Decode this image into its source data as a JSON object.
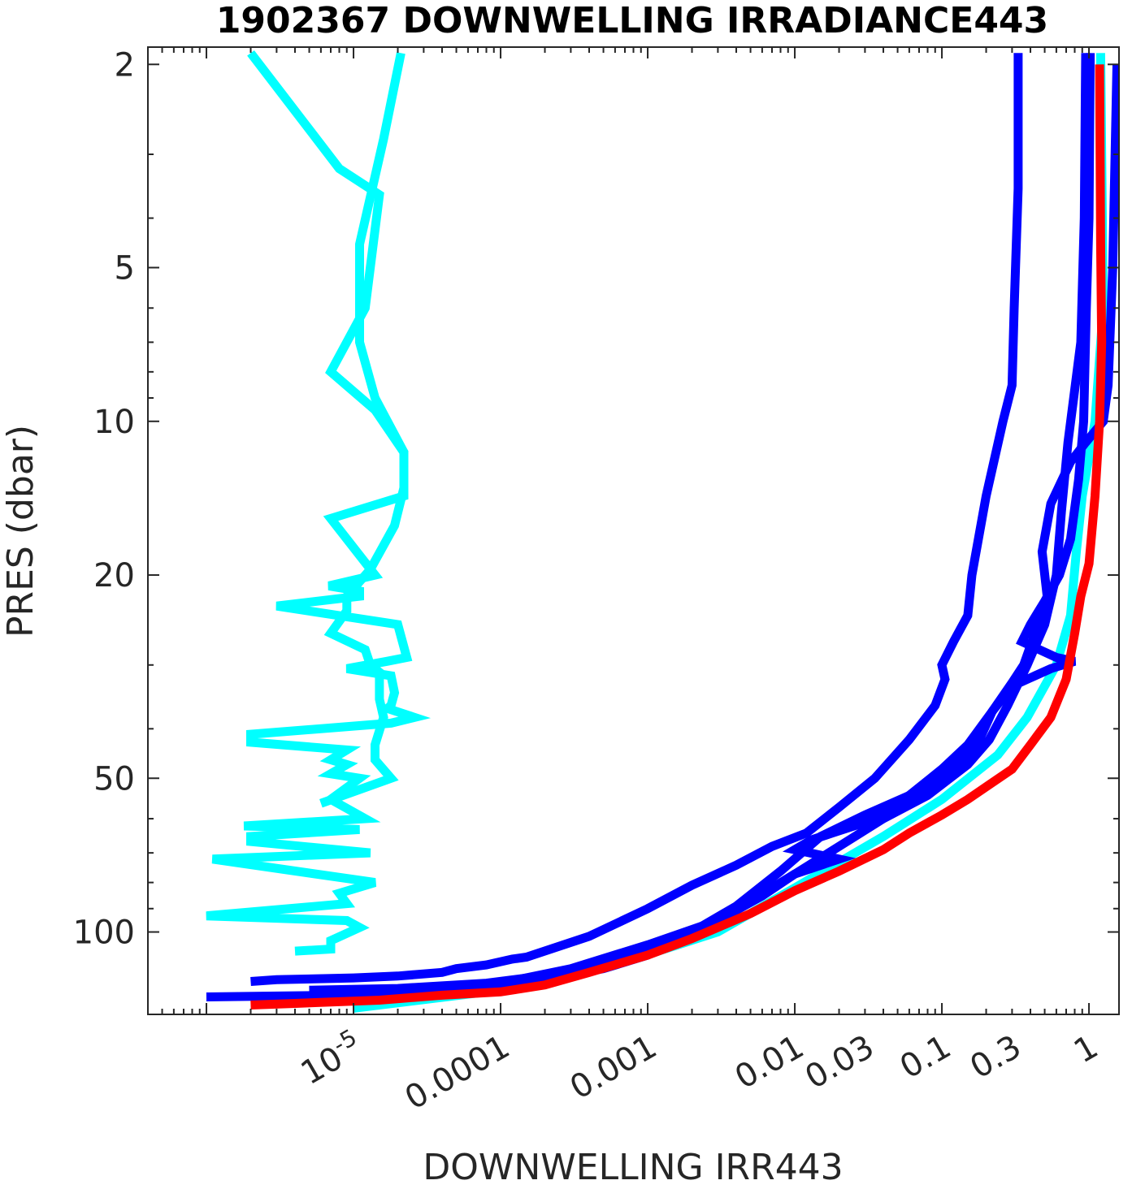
{
  "chart_data": {
    "type": "line",
    "title": "1902367  DOWNWELLING IRRADIANCE443",
    "xlabel": "DOWNWELLING IRR443",
    "ylabel": "PRES (dbar)",
    "x_scale": "log",
    "y_scale": "log",
    "y_reversed": true,
    "xlim": [
      4e-07,
      1.6
    ],
    "ylim": [
      1.85,
      145
    ],
    "x_ticks": [
      {
        "value": 1e-05,
        "label": "10",
        "exp": "-5"
      },
      {
        "value": 0.0001,
        "label": "0.0001"
      },
      {
        "value": 0.001,
        "label": "0.001"
      },
      {
        "value": 0.01,
        "label": "0.01"
      },
      {
        "value": 0.03,
        "label": "0.03"
      },
      {
        "value": 0.1,
        "label": "0.1"
      },
      {
        "value": 0.3,
        "label": "0.3"
      },
      {
        "value": 1,
        "label": "1"
      }
    ],
    "y_ticks": [
      {
        "value": 2,
        "label": "2"
      },
      {
        "value": 5,
        "label": "5"
      },
      {
        "value": 10,
        "label": "10"
      },
      {
        "value": 20,
        "label": "20"
      },
      {
        "value": 50,
        "label": "50"
      },
      {
        "value": 100,
        "label": "100"
      }
    ],
    "grid": false,
    "legend": "none",
    "series": [
      {
        "color": "#00ffff",
        "points": [
          [
            2e-06,
            1.9
          ],
          [
            8e-06,
            3.2
          ],
          [
            1.5e-05,
            3.6
          ],
          [
            1.2e-05,
            6.0
          ],
          [
            7e-06,
            8.0
          ],
          [
            1.4e-05,
            9.5
          ],
          [
            2.2e-05,
            11.5
          ],
          [
            2.2e-05,
            14.0
          ],
          [
            7e-06,
            15.5
          ],
          [
            1.4e-05,
            20.0
          ],
          [
            6.8e-06,
            21.0
          ],
          [
            1.1e-05,
            21.5
          ],
          [
            1.1e-05,
            22.0
          ],
          [
            3e-06,
            23.0
          ],
          [
            2e-05,
            25.0
          ],
          [
            2.3e-05,
            29.0
          ],
          [
            1.7e-05,
            29.5
          ],
          [
            9e-06,
            30.5
          ],
          [
            1.8e-05,
            31.5
          ],
          [
            1.9e-05,
            34.0
          ],
          [
            1.8e-05,
            36.0
          ],
          [
            1.7e-05,
            36.5
          ],
          [
            2.6e-05,
            38.0
          ],
          [
            1.8e-05,
            39.0
          ],
          [
            2e-06,
            41.0
          ],
          [
            2e-06,
            42.5
          ],
          [
            9e-06,
            44.0
          ],
          [
            7e-06,
            46.0
          ],
          [
            9e-06,
            47.0
          ],
          [
            7e-06,
            49.0
          ],
          [
            1.1e-05,
            50.0
          ],
          [
            7e-06,
            55.0
          ],
          [
            1.2e-05,
            60.0
          ],
          [
            1.8e-06,
            62.0
          ],
          [
            1.1e-05,
            63.0
          ],
          [
            2e-06,
            65.0
          ],
          [
            2e-06,
            66.5
          ],
          [
            1.3e-05,
            70.0
          ],
          [
            1.1e-06,
            72.0
          ],
          [
            1.4e-05,
            80.0
          ],
          [
            8e-06,
            84.0
          ],
          [
            9e-06,
            88.0
          ],
          [
            1e-06,
            93.0
          ],
          [
            9e-06,
            95.0
          ],
          [
            1.1e-05,
            98.0
          ],
          [
            7e-06,
            104.0
          ],
          [
            7e-06,
            108.0
          ],
          [
            4e-06,
            109.0
          ]
        ]
      },
      {
        "color": "#00ffff",
        "points": [
          [
            2.1e-05,
            1.9
          ],
          [
            1.6e-05,
            2.8
          ],
          [
            1.1e-05,
            4.5
          ],
          [
            1.1e-05,
            7.0
          ],
          [
            1.4e-05,
            9.0
          ],
          [
            2.2e-05,
            11.5
          ],
          [
            2.2e-05,
            13.5
          ],
          [
            1.9e-05,
            16.0
          ],
          [
            1.3e-05,
            19.5
          ],
          [
            9e-06,
            22.0
          ],
          [
            9e-06,
            23.5
          ],
          [
            7e-06,
            26.0
          ],
          [
            1.2e-05,
            28.0
          ],
          [
            1.3e-05,
            30.0
          ],
          [
            1.5e-05,
            31.0
          ],
          [
            1.5e-05,
            33.0
          ],
          [
            1.5e-05,
            35.0
          ],
          [
            1.6e-05,
            38.0
          ],
          [
            1.4e-05,
            43.0
          ],
          [
            1.4e-05,
            46.0
          ],
          [
            1.8e-05,
            50.0
          ],
          [
            6e-06,
            56.0
          ]
        ]
      },
      {
        "color": "#00ffff",
        "points": [
          [
            1.2,
            1.9
          ],
          [
            1.25,
            6.0
          ],
          [
            1.1,
            10.0
          ],
          [
            0.9,
            14.0
          ],
          [
            0.82,
            18.0
          ],
          [
            0.75,
            24.0
          ],
          [
            0.6,
            30.0
          ],
          [
            0.38,
            38.0
          ],
          [
            0.24,
            45.0
          ],
          [
            0.1,
            55.0
          ],
          [
            0.04,
            65.0
          ],
          [
            0.01,
            82.0
          ],
          [
            0.003,
            100.0
          ],
          [
            0.0008,
            113.0
          ],
          [
            0.0003,
            121.0
          ],
          [
            8e-05,
            131.0
          ],
          [
            1e-05,
            141.0
          ]
        ]
      },
      {
        "color": "#0000ff",
        "points": [
          [
            0.33,
            1.9
          ],
          [
            0.33,
            3.5
          ],
          [
            0.31,
            6.0
          ],
          [
            0.3,
            8.5
          ],
          [
            0.26,
            10.0
          ],
          [
            0.2,
            14.0
          ],
          [
            0.16,
            20.0
          ],
          [
            0.15,
            24.0
          ],
          [
            0.12,
            27.0
          ],
          [
            0.1,
            30.0
          ],
          [
            0.105,
            32.0
          ],
          [
            0.09,
            36.0
          ],
          [
            0.06,
            42.0
          ],
          [
            0.035,
            50.0
          ],
          [
            0.02,
            57.0
          ],
          [
            0.012,
            64.0
          ],
          [
            0.007,
            68.0
          ],
          [
            0.004,
            74.0
          ],
          [
            0.002,
            81.0
          ],
          [
            0.001,
            90.0
          ],
          [
            0.0004,
            102.0
          ],
          [
            0.00015,
            112.0
          ],
          [
            0.00012,
            113.0
          ],
          [
            8e-05,
            116.0
          ],
          [
            5e-05,
            118.0
          ],
          [
            4e-05,
            120.0
          ],
          [
            2e-05,
            122.0
          ],
          [
            1e-05,
            123.0
          ],
          [
            3e-06,
            124.0
          ],
          [
            2e-06,
            125.0
          ]
        ]
      },
      {
        "color": "#0000ff",
        "points": [
          [
            0.95,
            1.9
          ],
          [
            0.93,
            4.0
          ],
          [
            0.88,
            7.0
          ],
          [
            0.72,
            11.0
          ],
          [
            0.65,
            15.0
          ],
          [
            0.6,
            20.0
          ],
          [
            0.5,
            25.0
          ],
          [
            0.38,
            30.0
          ],
          [
            0.28,
            36.0
          ],
          [
            0.21,
            42.0
          ],
          [
            0.15,
            47.0
          ],
          [
            0.08,
            54.0
          ],
          [
            0.04,
            60.0
          ],
          [
            0.02,
            68.0
          ],
          [
            0.01,
            77.0
          ],
          [
            0.006,
            85.0
          ],
          [
            0.003,
            95.0
          ],
          [
            0.001,
            106.0
          ],
          [
            0.0003,
            118.0
          ],
          [
            0.0001,
            126.0
          ],
          [
            3e-05,
            130.0
          ],
          [
            8e-06,
            133.0
          ],
          [
            1e-06,
            134.0
          ]
        ]
      },
      {
        "color": "#0000ff",
        "points": [
          [
            1.55,
            2.0
          ],
          [
            1.45,
            5.0
          ],
          [
            1.35,
            8.5
          ],
          [
            1.25,
            10.0
          ],
          [
            0.95,
            11.0
          ],
          [
            0.75,
            12.0
          ],
          [
            0.55,
            14.5
          ],
          [
            0.48,
            18.0
          ],
          [
            0.52,
            22.0
          ],
          [
            0.45,
            25.0
          ],
          [
            0.36,
            30.0
          ],
          [
            0.3,
            32.5
          ],
          [
            0.22,
            37.0
          ],
          [
            0.15,
            43.0
          ],
          [
            0.1,
            48.0
          ],
          [
            0.06,
            54.0
          ],
          [
            0.03,
            61.0
          ],
          [
            0.018,
            64.0
          ],
          [
            0.013,
            66.0
          ],
          [
            0.01,
            69.0
          ],
          [
            0.02,
            72.0
          ],
          [
            0.01,
            77.0
          ],
          [
            0.007,
            82.0
          ],
          [
            0.004,
            90.0
          ],
          [
            0.002,
            100.0
          ],
          [
            0.001,
            111.0
          ],
          [
            0.0005,
            118.0
          ],
          [
            0.0002,
            124.0
          ],
          [
            6e-05,
            128.0
          ],
          [
            2e-05,
            131.0
          ],
          [
            8e-06,
            132.0
          ]
        ]
      },
      {
        "color": "#0000ff",
        "points": [
          [
            1.02,
            1.9
          ],
          [
            1.0,
            4.0
          ],
          [
            0.96,
            6.0
          ],
          [
            0.92,
            10.0
          ],
          [
            0.85,
            13.0
          ],
          [
            0.75,
            17.0
          ],
          [
            0.63,
            20.0
          ],
          [
            0.5,
            22.5
          ],
          [
            0.4,
            25.0
          ],
          [
            0.35,
            27.0
          ],
          [
            0.6,
            29.0
          ],
          [
            0.8,
            29.5
          ],
          [
            0.55,
            30.5
          ],
          [
            0.3,
            33.0
          ],
          [
            0.22,
            37.0
          ],
          [
            0.18,
            42.0
          ],
          [
            0.12,
            48.0
          ],
          [
            0.07,
            53.0
          ],
          [
            0.03,
            59.0
          ],
          [
            0.015,
            65.0
          ],
          [
            0.008,
            76.0
          ],
          [
            0.004,
            89.0
          ],
          [
            0.002,
            100.0
          ],
          [
            0.0008,
            111.0
          ],
          [
            0.0003,
            120.0
          ],
          [
            8e-05,
            126.0
          ],
          [
            2e-05,
            129.0
          ],
          [
            5e-06,
            130.0
          ]
        ]
      },
      {
        "color": "#ff0000",
        "points": [
          [
            1.18,
            2.0
          ],
          [
            1.2,
            4.5
          ],
          [
            1.22,
            7.0
          ],
          [
            1.18,
            10.0
          ],
          [
            1.1,
            14.0
          ],
          [
            1.0,
            19.0
          ],
          [
            0.88,
            22.0
          ],
          [
            0.8,
            26.0
          ],
          [
            0.7,
            32.0
          ],
          [
            0.55,
            38.0
          ],
          [
            0.4,
            43.0
          ],
          [
            0.3,
            48.0
          ],
          [
            0.22,
            51.0
          ],
          [
            0.15,
            55.0
          ],
          [
            0.1,
            59.0
          ],
          [
            0.06,
            64.0
          ],
          [
            0.04,
            69.0
          ],
          [
            0.02,
            76.0
          ],
          [
            0.01,
            83.0
          ],
          [
            0.005,
            92.0
          ],
          [
            0.002,
            103.0
          ],
          [
            0.001,
            111.0
          ],
          [
            0.0004,
            120.0
          ],
          [
            0.0002,
            127.0
          ],
          [
            0.0001,
            131.0
          ],
          [
            4e-05,
            133.0
          ],
          [
            1.5e-05,
            136.0
          ],
          [
            4e-06,
            138.0
          ],
          [
            2e-06,
            139.0
          ]
        ]
      }
    ]
  }
}
